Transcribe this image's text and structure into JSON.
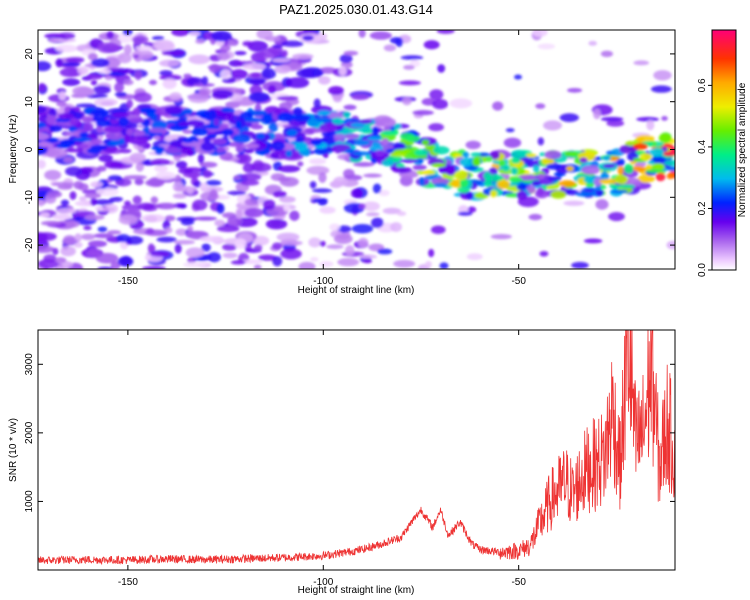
{
  "chart_data": [
    {
      "type": "heatmap",
      "title": "PAZ1.2025.030.01.43.G14",
      "xlabel": "Height of straight line (km)",
      "ylabel": "Frequency (Hz)",
      "xlim": [
        -173,
        -10
      ],
      "ylim": [
        -25,
        25
      ],
      "x_ticks": [
        -150,
        -100,
        -50
      ],
      "y_ticks": [
        -20,
        -10,
        0,
        10,
        20
      ],
      "colorbar": {
        "label": "Normalized spectral amplitude",
        "range": [
          0,
          0.78
        ],
        "ticks": [
          0.0,
          0.2,
          0.4,
          0.6
        ]
      },
      "ridge": {
        "x": [
          -173,
          -150,
          -120,
          -105,
          -95,
          -85,
          -78,
          -70,
          -62,
          -55,
          -48,
          -40,
          -32,
          -25,
          -18,
          -10
        ],
        "frequency": [
          4,
          4,
          3.5,
          3.5,
          3,
          2,
          -1,
          -4,
          -5.5,
          -5.5,
          -5,
          -5,
          -5,
          -5,
          -2,
          -1
        ],
        "peak_amplitude": [
          0.25,
          0.25,
          0.25,
          0.3,
          0.35,
          0.45,
          0.55,
          0.65,
          0.55,
          0.6,
          0.55,
          0.65,
          0.55,
          0.65,
          0.7,
          0.78
        ]
      }
    },
    {
      "type": "line",
      "title": "",
      "xlabel": "Height of straight line (km)",
      "ylabel": "SNR (10 * v/v)",
      "xlim": [
        -173,
        -10
      ],
      "ylim": [
        0,
        3500
      ],
      "x_ticks": [
        -150,
        -100,
        -50
      ],
      "y_ticks": [
        1000,
        2000,
        3000
      ],
      "series": [
        {
          "color": "#ee3333",
          "x": [
            -173,
            -160,
            -150,
            -140,
            -130,
            -120,
            -110,
            -100,
            -95,
            -90,
            -85,
            -80,
            -78,
            -75,
            -72,
            -70,
            -68,
            -65,
            -62,
            -60,
            -55,
            -50,
            -47,
            -44,
            -42,
            -40,
            -38,
            -36,
            -34,
            -32,
            -30,
            -28,
            -26,
            -24,
            -22,
            -20,
            -18,
            -16,
            -14,
            -12,
            -10
          ],
          "y": [
            140,
            150,
            145,
            160,
            150,
            165,
            180,
            210,
            250,
            300,
            380,
            480,
            650,
            880,
            620,
            880,
            500,
            700,
            380,
            300,
            260,
            280,
            360,
            750,
            1000,
            1150,
            1280,
            1100,
            1350,
            1500,
            1550,
            1650,
            2350,
            1500,
            3350,
            1800,
            2050,
            3000,
            1500,
            2150,
            1700
          ]
        }
      ]
    }
  ]
}
